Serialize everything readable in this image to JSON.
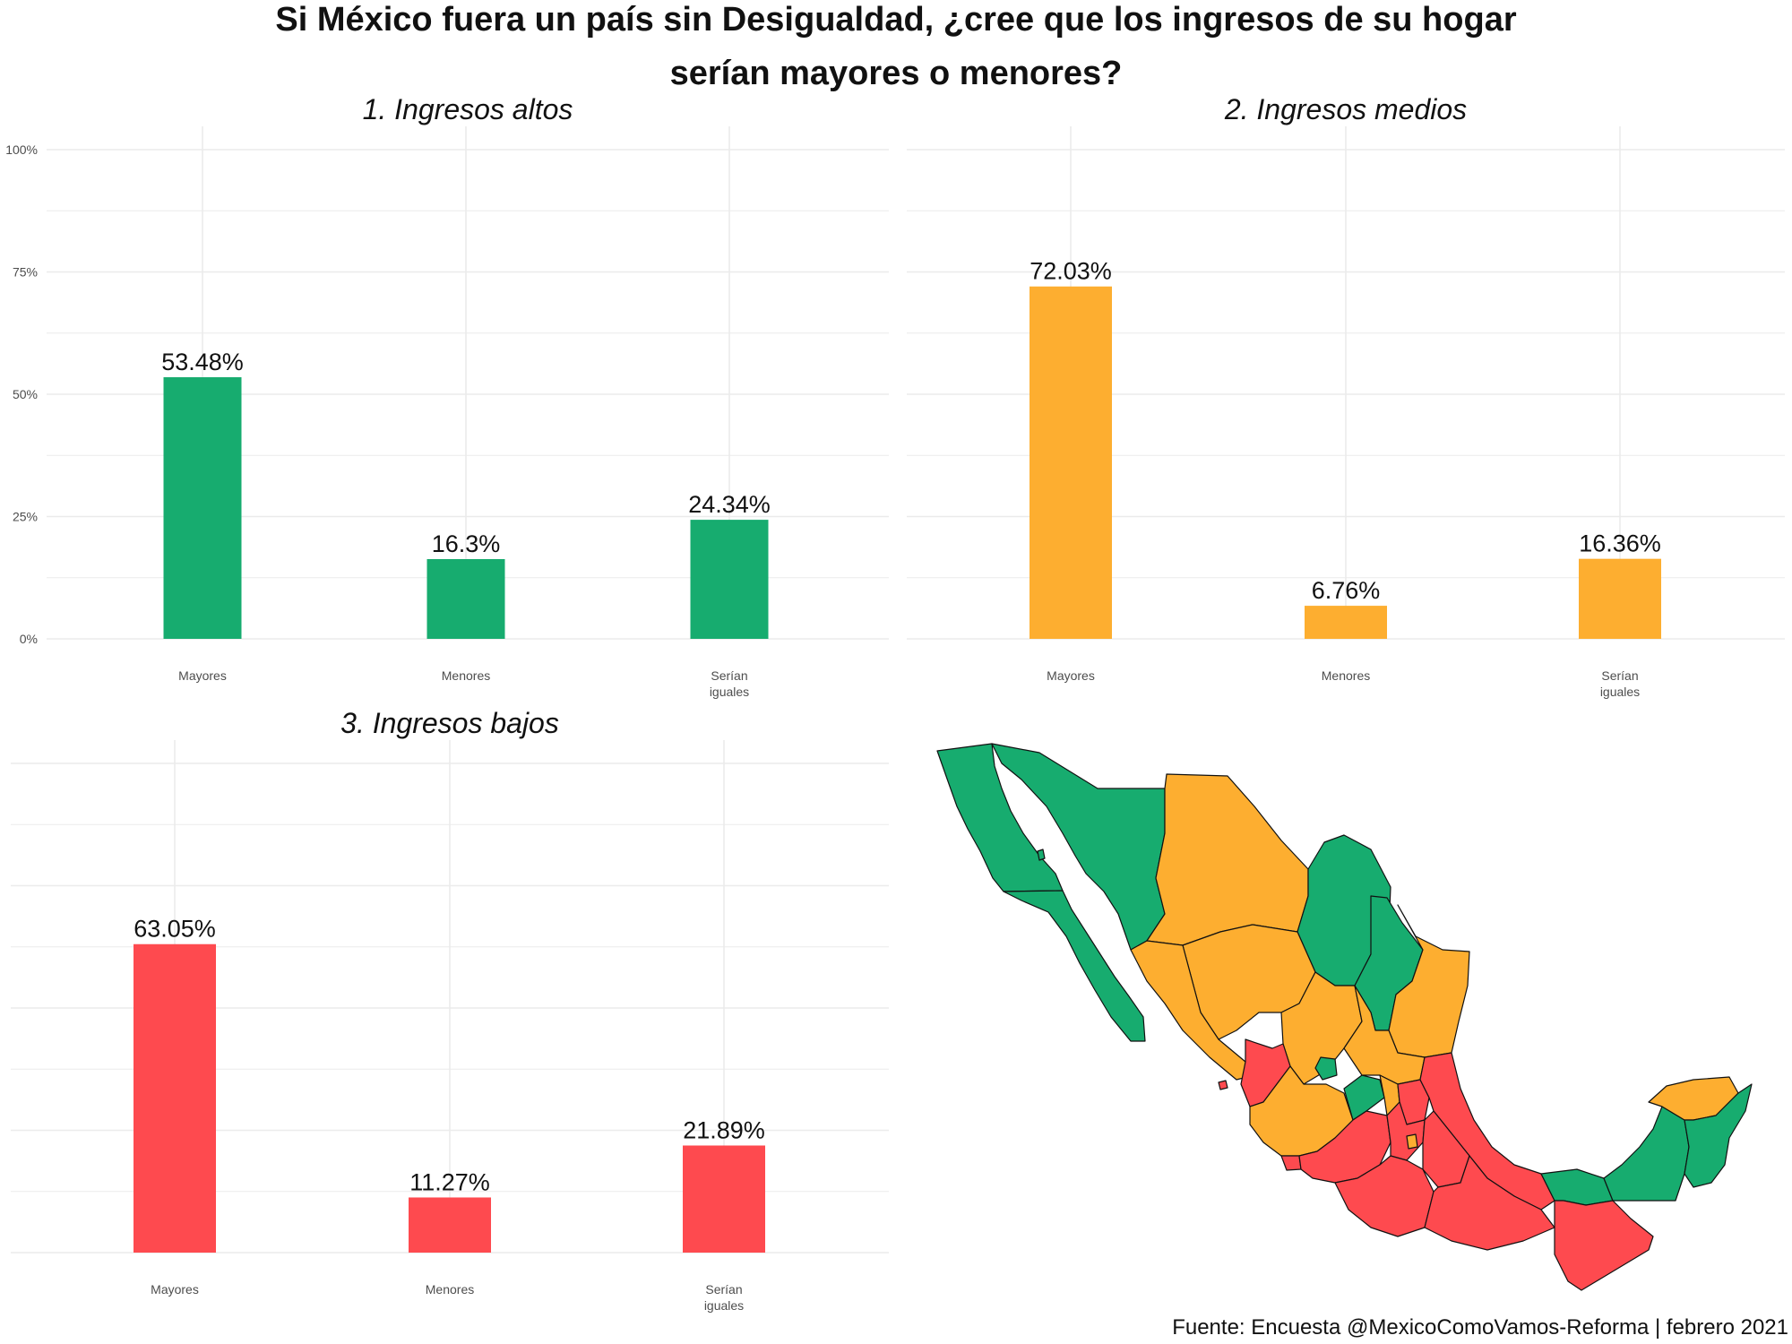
{
  "title_line1": "Si México fuera un país sin Desigualdad, ¿cree que los ingresos de su hogar",
  "title_line2": "serían mayores o menores?",
  "source": "Fuente: Encuesta @MexicoComoVamos-Reforma | febrero 2021",
  "colors": {
    "altos": "#17ac6f",
    "medios": "#fdae30",
    "bajos": "#fe4a4f",
    "grid": "#ebebeb",
    "axis_text": "#4d4d4d"
  },
  "chart_data": [
    {
      "type": "bar",
      "title": "1. Ingresos altos",
      "categories": [
        "Mayores",
        "Menores",
        "Serían\niguales"
      ],
      "values": [
        53.48,
        16.3,
        24.34
      ],
      "labels": [
        "53.48%",
        "16.3%",
        "24.34%"
      ],
      "ylim": [
        0,
        100
      ],
      "yticks": [
        "0%",
        "25%",
        "50%",
        "75%",
        "100%"
      ],
      "color": "#17ac6f"
    },
    {
      "type": "bar",
      "title": "2. Ingresos medios",
      "categories": [
        "Mayores",
        "Menores",
        "Serían\niguales"
      ],
      "values": [
        72.03,
        6.76,
        16.36
      ],
      "labels": [
        "72.03%",
        "6.76%",
        "16.36%"
      ],
      "ylim": [
        0,
        100
      ],
      "color": "#fdae30"
    },
    {
      "type": "bar",
      "title": "3. Ingresos bajos",
      "categories": [
        "Mayores",
        "Menores",
        "Serían\niguales"
      ],
      "values": [
        63.05,
        11.27,
        21.89
      ],
      "labels": [
        "63.05%",
        "11.27%",
        "21.89%"
      ],
      "ylim": [
        0,
        100
      ],
      "color": "#fe4a4f"
    }
  ]
}
